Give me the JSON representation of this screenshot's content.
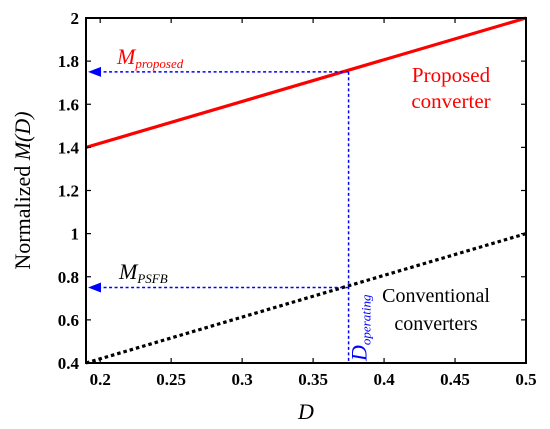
{
  "chart_data": {
    "type": "line",
    "xlabel_prefix": "",
    "xlabel_var": "D",
    "ylabel_prefix": "Normalized ",
    "ylabel_var": "M(D)",
    "xlim": [
      0.19,
      0.5
    ],
    "ylim": [
      0.4,
      2.0
    ],
    "x_ticks": [
      "0.2",
      "0.25",
      "0.3",
      "0.35",
      "0.4",
      "0.45",
      "0.5"
    ],
    "y_ticks": [
      "0.4",
      "0.6",
      "0.8",
      "1",
      "1.2",
      "1.4",
      "1.6",
      "1.8",
      "2"
    ],
    "series": [
      {
        "name": "Proposed converter",
        "style": "solid",
        "color": "#ff0000",
        "x": [
          0.19,
          0.5
        ],
        "y": [
          1.4,
          2.0
        ]
      },
      {
        "name": "Conventional converters",
        "style": "dotted",
        "color": "#000000",
        "x": [
          0.19,
          0.5
        ],
        "y": [
          0.4,
          1.0
        ]
      }
    ],
    "operating_point": {
      "x": 0.375,
      "y_proposed": 1.75,
      "y_psfb": 0.75,
      "color": "#0000ff"
    },
    "annotations": {
      "proposed_label_line1": "Proposed",
      "proposed_label_line2": "converter",
      "conventional_label_line1": "Conventional",
      "conventional_label_line2": "converters",
      "m_proposed_main": "M",
      "m_proposed_sub": "proposed",
      "m_psfb_main": "M",
      "m_psfb_sub": "PSFB",
      "d_operating_main": "D",
      "d_operating_sub": "operating"
    },
    "grid": false
  }
}
